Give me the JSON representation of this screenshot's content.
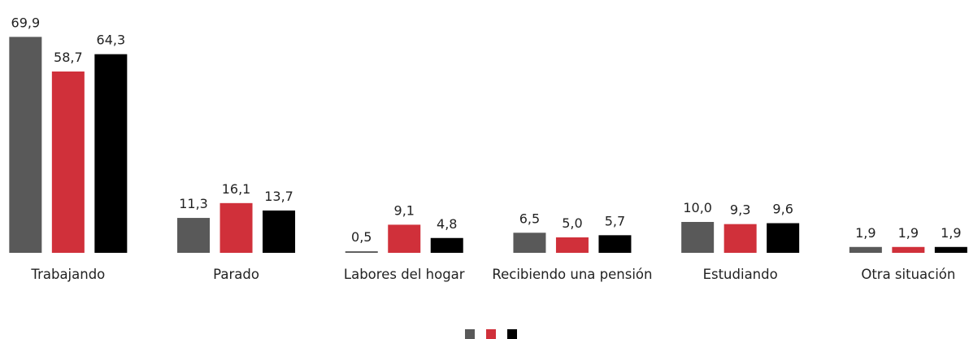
{
  "chart_data": {
    "type": "bar",
    "categories": [
      "Trabajando",
      "Parado",
      "Labores del hogar",
      "Recibiendo una pensión",
      "Estudiando",
      "Otra situación"
    ],
    "series": [
      {
        "color": "#595959",
        "values": [
          69.9,
          11.3,
          0.5,
          6.5,
          10.0,
          1.9
        ],
        "value_labels": [
          "69,9",
          "11,3",
          "0,5",
          "6,5",
          "10,0",
          "1,9"
        ]
      },
      {
        "color": "#d0303a",
        "values": [
          58.7,
          16.1,
          9.1,
          5.0,
          9.3,
          1.9
        ],
        "value_labels": [
          "58,7",
          "16,1",
          "9,1",
          "5,0",
          "9,3",
          "1,9"
        ]
      },
      {
        "color": "#000000",
        "values": [
          64.3,
          13.7,
          4.8,
          5.7,
          9.6,
          1.9
        ],
        "value_labels": [
          "64,3",
          "13,7",
          "4,8",
          "5,7",
          "9,6",
          "1,9"
        ]
      }
    ],
    "ylim": [
      0,
      70
    ]
  }
}
